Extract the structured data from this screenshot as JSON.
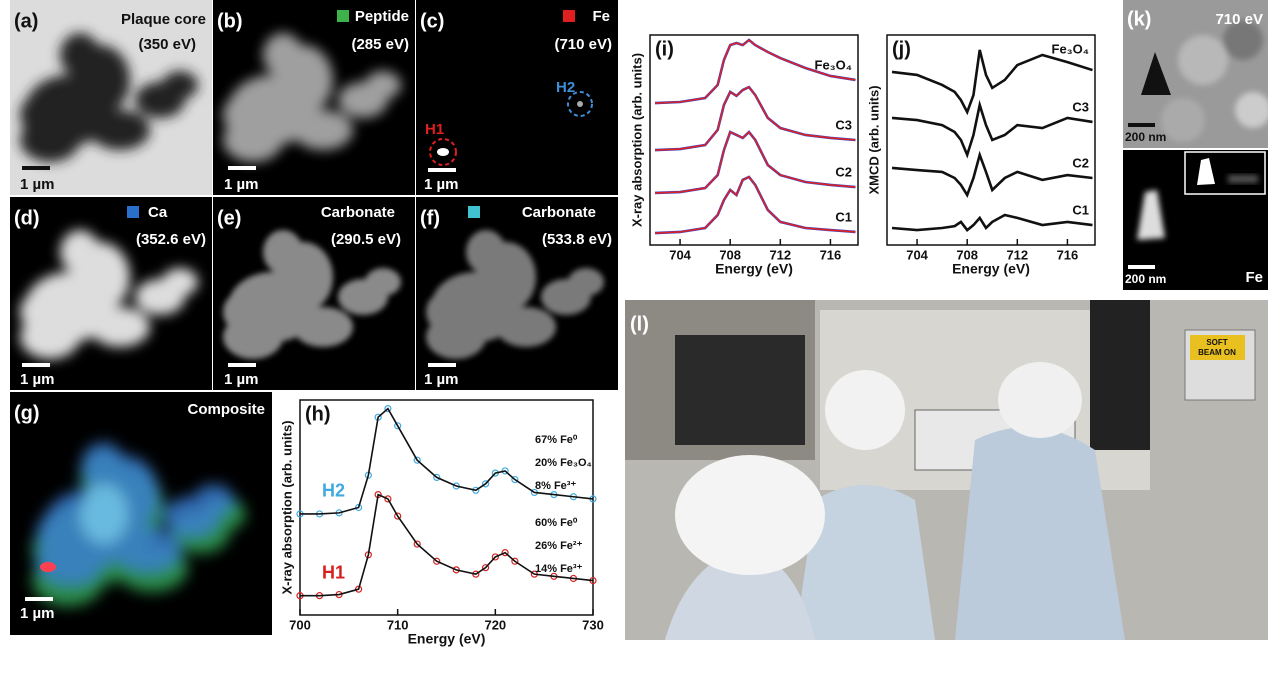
{
  "panels": {
    "a": {
      "label": "(a)",
      "title": "Plaque core",
      "energy": "(350 eV)",
      "scale": "1 µm"
    },
    "b": {
      "label": "(b)",
      "title": "Peptide",
      "energy": "(285 eV)",
      "scale": "1 µm"
    },
    "c": {
      "label": "(c)",
      "title": "Fe",
      "energy": "(710 eV)",
      "scale": "1 µm",
      "markers": [
        "H1",
        "H2"
      ]
    },
    "d": {
      "label": "(d)",
      "title": "Ca",
      "energy": "(352.6 eV)",
      "scale": "1 µm"
    },
    "e": {
      "label": "(e)",
      "title": "Carbonate",
      "energy": "(290.5 eV)",
      "scale": "1 µm"
    },
    "f": {
      "label": "(f)",
      "title": "Carbonate",
      "energy": "(533.8 eV)",
      "scale": "1 µm"
    },
    "g": {
      "label": "(g)",
      "title": "Composite",
      "scale": "1 µm"
    },
    "k": {
      "label": "(k)",
      "energy": "710 eV",
      "scale_top": "200 nm",
      "scale_bottom": "200 nm",
      "element": "Fe"
    },
    "l": {
      "label": "(l)",
      "sign": [
        "SOFT",
        "BEAM ON"
      ]
    }
  },
  "chart_data": [
    {
      "type": "line",
      "label": "(h)",
      "xlabel": "Energy (eV)",
      "ylabel": "X-ray absorption (arb. units)",
      "x": [
        700,
        702,
        704,
        706,
        707,
        708,
        709,
        710,
        712,
        714,
        716,
        718,
        719,
        720,
        721,
        722,
        724,
        726,
        728,
        730
      ],
      "xlim": [
        700,
        730
      ],
      "xticks": [
        700,
        710,
        720,
        730
      ],
      "ylim": [
        0,
        10
      ],
      "fit_color": "#111111",
      "series": [
        {
          "name": "H2",
          "color": "#3fa9e0",
          "values": [
            4.7,
            4.7,
            4.75,
            5.0,
            6.5,
            9.2,
            9.6,
            8.8,
            7.2,
            6.4,
            6.0,
            5.8,
            6.1,
            6.6,
            6.7,
            6.3,
            5.7,
            5.6,
            5.5,
            5.4
          ]
        },
        {
          "name": "H1",
          "color": "#d62020",
          "values": [
            0.9,
            0.9,
            0.95,
            1.2,
            2.8,
            5.6,
            5.4,
            4.6,
            3.3,
            2.5,
            2.1,
            1.9,
            2.2,
            2.7,
            2.9,
            2.5,
            1.9,
            1.8,
            1.7,
            1.6
          ]
        }
      ],
      "annotations": [
        [
          "67% Fe⁰",
          "20% Fe₃O₄",
          "8% Fe³⁺"
        ],
        [
          "60% Fe⁰",
          "26% Fe²⁺",
          "14% Fe³⁺"
        ]
      ]
    },
    {
      "type": "line",
      "label": "(i)",
      "xlabel": "Energy (eV)",
      "ylabel": "X-ray absorption (arb. units)",
      "x": [
        702,
        704,
        706,
        707,
        707.5,
        708,
        708.5,
        709,
        709.5,
        710,
        711,
        712,
        714,
        716,
        718
      ],
      "xlim": [
        701.6,
        718.2
      ],
      "xticks": [
        704,
        708,
        712,
        716
      ],
      "ylim": [
        0,
        10
      ],
      "colors": [
        "#3344cc",
        "#dd2222"
      ],
      "series": [
        {
          "name": "C1",
          "values": [
            0.57,
            0.62,
            0.81,
            1.43,
            2.14,
            2.62,
            2.38,
            3.1,
            3.24,
            2.86,
            1.67,
            1.1,
            0.81,
            0.71,
            0.62
          ]
        },
        {
          "name": "C2",
          "values": [
            2.48,
            2.52,
            2.71,
            3.33,
            4.52,
            5.38,
            5.24,
            5.1,
            5.38,
            5.0,
            3.81,
            3.33,
            3.0,
            2.86,
            2.76
          ]
        },
        {
          "name": "C3",
          "values": [
            4.52,
            4.57,
            4.76,
            5.48,
            6.67,
            7.29,
            7.1,
            7.38,
            7.52,
            7.14,
            6.05,
            5.57,
            5.24,
            5.1,
            5.0
          ]
        },
        {
          "name": "Fe₃O₄",
          "values": [
            6.76,
            6.81,
            7.0,
            7.62,
            8.81,
            9.52,
            9.62,
            9.52,
            9.76,
            9.52,
            9.19,
            8.9,
            8.43,
            8.05,
            7.86
          ]
        }
      ]
    },
    {
      "type": "line",
      "label": "(j)",
      "xlabel": "Energy (eV)",
      "ylabel": "XMCD (arb. units)",
      "x": [
        702,
        704,
        706,
        707,
        707.5,
        708,
        708.5,
        709,
        709.5,
        710,
        711,
        712,
        714,
        716,
        718
      ],
      "xlim": [
        701.6,
        718.2
      ],
      "xticks": [
        704,
        708,
        712,
        716
      ],
      "ylim": [
        0,
        10
      ],
      "colors": [
        "#111111"
      ],
      "series": [
        {
          "name": "C1",
          "values": [
            0.81,
            0.71,
            0.81,
            0.9,
            1.1,
            0.71,
            0.95,
            1.29,
            0.81,
            1.1,
            1.43,
            1.29,
            0.95,
            1.1,
            0.95
          ]
        },
        {
          "name": "C2",
          "values": [
            3.67,
            3.57,
            3.48,
            3.19,
            2.86,
            2.38,
            3.19,
            4.29,
            3.48,
            2.62,
            3.19,
            3.48,
            3.1,
            3.33,
            3.19
          ]
        },
        {
          "name": "C3",
          "values": [
            6.05,
            5.95,
            5.71,
            5.38,
            5.0,
            4.29,
            5.24,
            6.67,
            5.71,
            5.0,
            5.24,
            5.71,
            5.57,
            6.05,
            5.86
          ]
        },
        {
          "name": "Fe₃O₄",
          "values": [
            8.24,
            8.1,
            7.62,
            7.29,
            6.9,
            6.33,
            7.14,
            9.29,
            8.1,
            7.48,
            7.86,
            8.57,
            9.05,
            8.71,
            8.33
          ]
        }
      ]
    }
  ]
}
